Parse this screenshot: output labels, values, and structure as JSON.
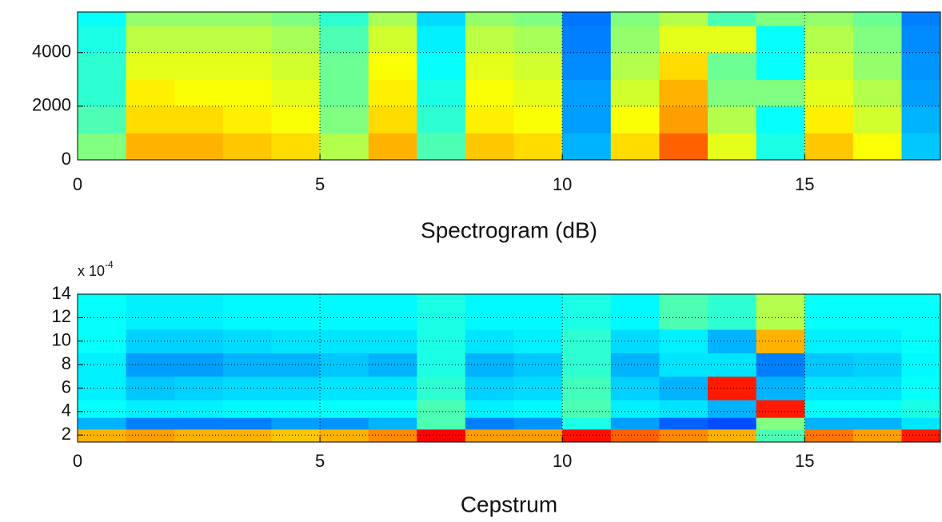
{
  "chart_data": [
    {
      "type": "heatmap",
      "xlabel": "Spectrogram (dB)",
      "colormap": "jet",
      "grid": true,
      "x_edges": [
        0,
        1,
        2,
        3,
        4,
        5,
        6,
        7,
        8,
        9,
        10,
        11,
        12,
        13,
        14,
        15,
        16,
        17,
        17.8
      ],
      "y_edges": [
        0,
        1000,
        2000,
        3000,
        4000,
        5000,
        5512
      ],
      "xlim": [
        0,
        17.8
      ],
      "ylim": [
        0,
        5512
      ],
      "xticks": [
        0,
        5,
        10,
        15
      ],
      "yticks": [
        0,
        2000,
        4000
      ],
      "z": [
        [
          0.5,
          0.7,
          0.7,
          0.68,
          0.66,
          0.55,
          0.7,
          0.45,
          0.68,
          0.66,
          0.3,
          0.66,
          0.78,
          0.6,
          0.4,
          0.68,
          0.62,
          0.32
        ],
        [
          0.45,
          0.66,
          0.66,
          0.64,
          0.62,
          0.5,
          0.66,
          0.42,
          0.64,
          0.62,
          0.28,
          0.62,
          0.72,
          0.55,
          0.38,
          0.64,
          0.58,
          0.3
        ],
        [
          0.42,
          0.64,
          0.62,
          0.62,
          0.6,
          0.48,
          0.64,
          0.4,
          0.62,
          0.6,
          0.28,
          0.58,
          0.7,
          0.5,
          0.5,
          0.6,
          0.55,
          0.28
        ],
        [
          0.42,
          0.6,
          0.6,
          0.6,
          0.58,
          0.48,
          0.62,
          0.38,
          0.6,
          0.58,
          0.26,
          0.55,
          0.66,
          0.48,
          0.38,
          0.58,
          0.52,
          0.27
        ],
        [
          0.4,
          0.56,
          0.56,
          0.56,
          0.54,
          0.45,
          0.58,
          0.36,
          0.56,
          0.54,
          0.25,
          0.52,
          0.6,
          0.6,
          0.38,
          0.55,
          0.5,
          0.26
        ],
        [
          0.38,
          0.52,
          0.52,
          0.52,
          0.5,
          0.42,
          0.54,
          0.34,
          0.52,
          0.5,
          0.24,
          0.5,
          0.55,
          0.45,
          0.5,
          0.52,
          0.48,
          0.25
        ]
      ]
    },
    {
      "type": "heatmap",
      "xlabel": "Cepstrum",
      "colormap": "jet",
      "grid": true,
      "y_scale_label": {
        "base": "x 10",
        "exponent": "-4"
      },
      "x_edges": [
        0,
        1,
        2,
        3,
        4,
        5,
        6,
        7,
        8,
        9,
        10,
        11,
        12,
        13,
        14,
        15,
        16,
        17,
        17.8
      ],
      "y_edges": [
        1.4,
        2.5,
        3.5,
        5,
        7,
        9,
        11,
        14
      ],
      "xlim": [
        0,
        17.8
      ],
      "ylim": [
        1.4,
        14
      ],
      "xticks": [
        0,
        5,
        10,
        15
      ],
      "yticks": [
        2,
        4,
        6,
        8,
        10,
        12,
        14
      ],
      "z": [
        [
          0.7,
          0.72,
          0.7,
          0.7,
          0.68,
          0.7,
          0.74,
          0.88,
          0.72,
          0.72,
          0.86,
          0.78,
          0.74,
          0.7,
          0.45,
          0.76,
          0.72,
          0.85
        ],
        [
          0.3,
          0.25,
          0.25,
          0.25,
          0.28,
          0.27,
          0.3,
          0.45,
          0.25,
          0.27,
          0.4,
          0.28,
          0.22,
          0.2,
          0.5,
          0.3,
          0.3,
          0.35
        ],
        [
          0.38,
          0.36,
          0.36,
          0.37,
          0.37,
          0.38,
          0.38,
          0.45,
          0.36,
          0.37,
          0.45,
          0.36,
          0.35,
          0.3,
          0.85,
          0.38,
          0.38,
          0.4
        ],
        [
          0.36,
          0.32,
          0.33,
          0.34,
          0.34,
          0.35,
          0.35,
          0.42,
          0.33,
          0.34,
          0.44,
          0.33,
          0.3,
          0.85,
          0.3,
          0.35,
          0.35,
          0.38
        ],
        [
          0.36,
          0.28,
          0.28,
          0.3,
          0.3,
          0.32,
          0.3,
          0.4,
          0.3,
          0.32,
          0.42,
          0.3,
          0.35,
          0.35,
          0.25,
          0.32,
          0.33,
          0.37
        ],
        [
          0.38,
          0.33,
          0.33,
          0.34,
          0.35,
          0.35,
          0.35,
          0.4,
          0.35,
          0.36,
          0.42,
          0.34,
          0.36,
          0.3,
          0.7,
          0.36,
          0.36,
          0.38
        ],
        [
          0.38,
          0.36,
          0.36,
          0.37,
          0.37,
          0.37,
          0.37,
          0.4,
          0.37,
          0.37,
          0.4,
          0.37,
          0.45,
          0.42,
          0.55,
          0.38,
          0.38,
          0.38
        ]
      ]
    }
  ]
}
